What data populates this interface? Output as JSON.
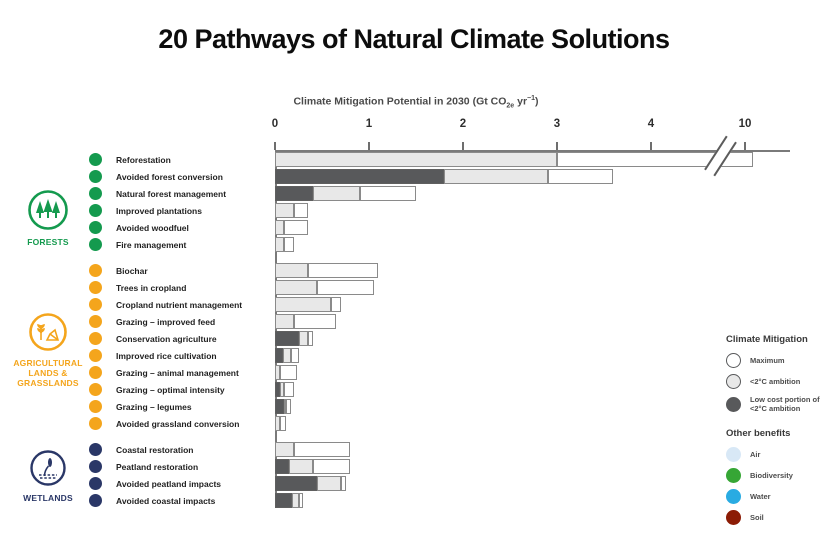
{
  "title": "20 Pathways of Natural Climate Solutions",
  "axis": {
    "title_prefix": "Climate Mitigation Potential in 2030 (Gt CO",
    "title_sub": "2e",
    "title_mid": " yr",
    "title_sup": "−1",
    "title_suffix": ")"
  },
  "chart_data": {
    "type": "bar",
    "orientation": "horizontal",
    "xlabel": "Climate Mitigation Potential in 2030 (Gt CO2e yr-1)",
    "ticks": [
      0,
      1,
      2,
      3,
      4,
      10
    ],
    "axis_break_between": [
      4,
      10
    ],
    "series_meaning": [
      "low_cost = Low cost portion of <2°C ambition",
      "ambition = <2°C ambition",
      "maximum = Maximum"
    ],
    "groups": [
      {
        "name": "FORESTS",
        "color": "#149a4e",
        "icon": "forests-icon",
        "pathways": [
          {
            "label": "Reforestation",
            "low_cost": 0,
            "ambition": 3.0,
            "maximum": 10.1,
            "clipped_at_break": true
          },
          {
            "label": "Avoided forest conversion",
            "low_cost": 1.8,
            "ambition": 2.9,
            "maximum": 3.6
          },
          {
            "label": "Natural forest management",
            "low_cost": 0.4,
            "ambition": 0.9,
            "maximum": 1.5
          },
          {
            "label": "Improved plantations",
            "low_cost": 0,
            "ambition": 0.2,
            "maximum": 0.35
          },
          {
            "label": "Avoided woodfuel",
            "low_cost": 0,
            "ambition": 0.1,
            "maximum": 0.35
          },
          {
            "label": "Fire management",
            "low_cost": 0,
            "ambition": 0.1,
            "maximum": 0.2
          }
        ]
      },
      {
        "name": "AGRICULTURAL LANDS & GRASSLANDS",
        "color": "#f4a51c",
        "icon": "agriculture-icon",
        "pathways": [
          {
            "label": "Biochar",
            "low_cost": 0,
            "ambition": 0.35,
            "maximum": 1.1
          },
          {
            "label": "Trees in cropland",
            "low_cost": 0,
            "ambition": 0.45,
            "maximum": 1.05
          },
          {
            "label": "Cropland nutrient management",
            "low_cost": 0,
            "ambition": 0.6,
            "maximum": 0.7
          },
          {
            "label": "Grazing – improved feed",
            "low_cost": 0,
            "ambition": 0.2,
            "maximum": 0.65
          },
          {
            "label": "Conservation agriculture",
            "low_cost": 0.25,
            "ambition": 0.35,
            "maximum": 0.4
          },
          {
            "label": "Improved rice cultivation",
            "low_cost": 0.08,
            "ambition": 0.17,
            "maximum": 0.25
          },
          {
            "label": "Grazing – animal management",
            "low_cost": 0,
            "ambition": 0.05,
            "maximum": 0.23
          },
          {
            "label": "Grazing – optimal intensity",
            "low_cost": 0.05,
            "ambition": 0.1,
            "maximum": 0.2
          },
          {
            "label": "Grazing – legumes",
            "low_cost": 0.1,
            "ambition": 0.12,
            "maximum": 0.17
          },
          {
            "label": "Avoided grassland conversion",
            "low_cost": 0,
            "ambition": 0.05,
            "maximum": 0.12
          }
        ]
      },
      {
        "name": "WETLANDS",
        "color": "#2a3767",
        "icon": "wetlands-icon",
        "pathways": [
          {
            "label": "Coastal restoration",
            "low_cost": 0,
            "ambition": 0.2,
            "maximum": 0.8
          },
          {
            "label": "Peatland restoration",
            "low_cost": 0.15,
            "ambition": 0.4,
            "maximum": 0.8
          },
          {
            "label": "Avoided peatland impacts",
            "low_cost": 0.45,
            "ambition": 0.7,
            "maximum": 0.75
          },
          {
            "label": "Avoided coastal impacts",
            "low_cost": 0.18,
            "ambition": 0.25,
            "maximum": 0.3
          }
        ]
      }
    ]
  },
  "legend": {
    "mitigation_title": "Climate Mitigation",
    "mitigation_items": [
      {
        "label": "Maximum",
        "fill": "#ffffff",
        "outlined": true
      },
      {
        "label": "<2°C ambition",
        "fill": "#e8e8e8",
        "outlined": true
      },
      {
        "label": "Low cost portion of <2°C ambition",
        "fill": "#58595b",
        "outlined": true
      }
    ],
    "benefits_title": "Other benefits",
    "benefit_items": [
      {
        "label": "Air",
        "fill": "#d8e8f6",
        "outlined": false
      },
      {
        "label": "Biodiversity",
        "fill": "#36a635",
        "outlined": false
      },
      {
        "label": "Water",
        "fill": "#29abe2",
        "outlined": false
      },
      {
        "label": "Soil",
        "fill": "#8c1c05",
        "outlined": false
      }
    ]
  }
}
